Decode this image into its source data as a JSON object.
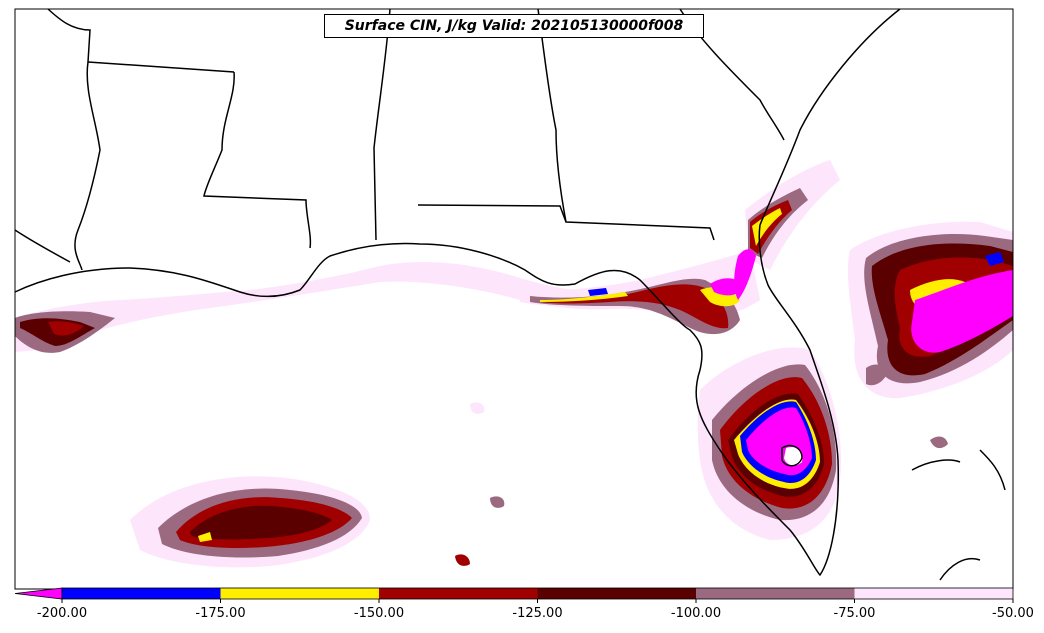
{
  "title": "Surface CIN, J/kg Valid: 202105130000f008",
  "colorbar": {
    "extend": "min",
    "levels": [
      {
        "from": -200,
        "to": -175,
        "color": "#0000ff"
      },
      {
        "from": -175,
        "to": -150,
        "color": "#ffee00"
      },
      {
        "from": -150,
        "to": -125,
        "color": "#a00000"
      },
      {
        "from": -125,
        "to": -100,
        "color": "#5a0000"
      },
      {
        "from": -100,
        "to": -75,
        "color": "#9b6a80"
      },
      {
        "from": -75,
        "to": -50,
        "color": "#fde5fb"
      }
    ],
    "under_color": "#ff00ff",
    "tick_labels": [
      "-200.00",
      "-175.00",
      "-150.00",
      "-125.00",
      "-100.00",
      "-75.00",
      "-50.00"
    ]
  }
}
